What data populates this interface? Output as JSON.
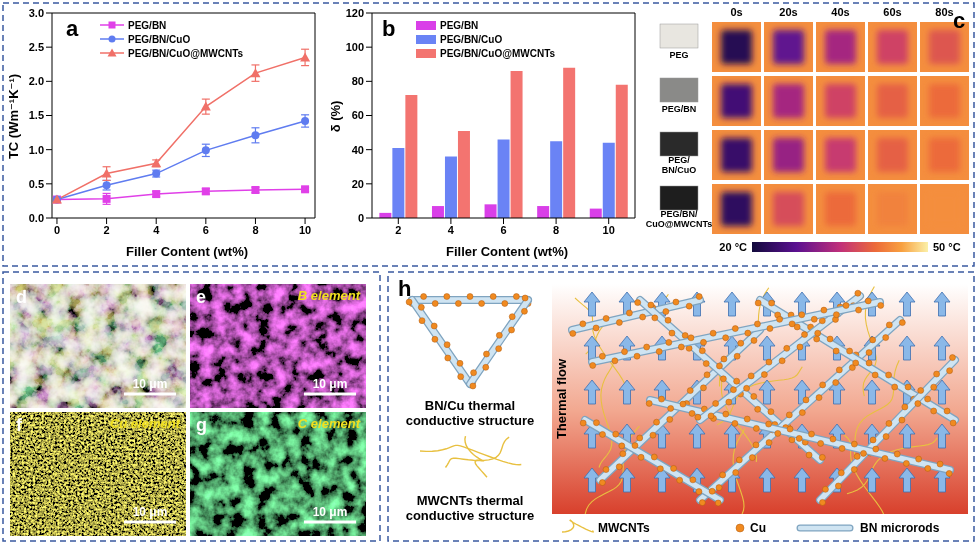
{
  "chart_data": [
    {
      "type": "line",
      "panel": "a",
      "x_label": "Filler Content (wt%)",
      "y_label": "TC (Wm⁻¹K⁻¹)",
      "x": [
        0,
        2,
        4,
        6,
        8,
        10
      ],
      "xlim": [
        -0.2,
        10.4
      ],
      "xticks": [
        0,
        2,
        4,
        6,
        8,
        10
      ],
      "ylim": [
        0,
        3
      ],
      "yticks": [
        {
          "value": 0,
          "label": "0.0"
        },
        {
          "value": 0.5,
          "label": "0.5"
        },
        {
          "value": 1,
          "label": "1.0"
        },
        {
          "value": 1.5,
          "label": "1.5"
        },
        {
          "value": 2,
          "label": "2.0"
        },
        {
          "value": 2.5,
          "label": "2.5"
        },
        {
          "value": 3,
          "label": "3.0"
        }
      ],
      "legend": "upper left",
      "series": [
        {
          "name": "PEG/BN",
          "color": "#e040e8",
          "marker": "square",
          "values": [
            0.27,
            0.28,
            0.35,
            0.39,
            0.41,
            0.42
          ],
          "errors": [
            0.02,
            0.08,
            0.04,
            0.04,
            0.04,
            0.03
          ]
        },
        {
          "name": "PEG/BN/CuO",
          "color": "#5f7cf0",
          "marker": "circle",
          "values": [
            0.27,
            0.48,
            0.65,
            0.99,
            1.21,
            1.42
          ],
          "errors": [
            0.02,
            0.07,
            0.05,
            0.09,
            0.11,
            0.09
          ]
        },
        {
          "name": "PEG/BN/CuO@MWCNTs",
          "color": "#f07068",
          "marker": "triangle",
          "values": [
            0.27,
            0.65,
            0.8,
            1.63,
            2.12,
            2.35
          ],
          "errors": [
            0.02,
            0.1,
            0.05,
            0.11,
            0.12,
            0.12
          ]
        }
      ]
    },
    {
      "type": "bar",
      "panel": "b",
      "x_label": "Filler Content (wt%)",
      "y_label": "δ (%)",
      "categories": [
        "2",
        "4",
        "6",
        "8",
        "10"
      ],
      "ylim": [
        0,
        120
      ],
      "yticks": [
        0,
        20,
        40,
        60,
        80,
        100,
        120
      ],
      "legend": "upper left",
      "series": [
        {
          "name": "PEG/BN",
          "color": "#d93fe8",
          "values": [
            3,
            7,
            8,
            7,
            5.5
          ]
        },
        {
          "name": "PEG/BN/CuO",
          "color": "#6a83f5",
          "values": [
            41,
            36,
            46,
            45,
            44
          ]
        },
        {
          "name": "PEG/BN/CuO@MWCNTs",
          "color": "#f37470",
          "values": [
            72,
            51,
            86,
            88,
            78
          ]
        }
      ]
    }
  ],
  "thermal_images": {
    "panel": "c",
    "columns": [
      "0s",
      "20s",
      "40s",
      "60s",
      "80s"
    ],
    "background_temperature": 44,
    "rows": [
      {
        "label": [
          "PEG"
        ],
        "color": "#e8e6e0",
        "temperatures": [
          22,
          28,
          33,
          37,
          39
        ]
      },
      {
        "label": [
          "PEG/BN"
        ],
        "color": "#8a8a88",
        "temperatures": [
          25,
          33,
          37,
          40,
          41
        ]
      },
      {
        "label": [
          "PEG/",
          "BN/CuO"
        ],
        "color": "#2a2a2a",
        "temperatures": [
          24,
          32,
          36,
          40,
          41
        ]
      },
      {
        "label": [
          "PEG/BN/",
          "CuO@MWCNTs"
        ],
        "color": "#1e1e1e",
        "temperatures": [
          23,
          38,
          41,
          43,
          44
        ]
      }
    ],
    "colorbar": {
      "range": [
        20,
        50
      ],
      "ticks": [
        {
          "value": 20,
          "label": "20 °C"
        },
        {
          "value": 50,
          "label": "50 °C"
        }
      ]
    }
  },
  "eds_maps": {
    "scale_bar": "10 μm",
    "panels": [
      {
        "panel": "d",
        "colors": [
          "#c050c0",
          "#30b050",
          "#c8b030"
        ]
      },
      {
        "panel": "e",
        "label": "B element",
        "color": "#c828c8"
      },
      {
        "panel": "f",
        "label": "Cu element",
        "color": "#d8c820"
      },
      {
        "panel": "g",
        "label": "C element",
        "color": "#28b848"
      }
    ]
  },
  "schematic": {
    "panel": "h",
    "structures": [
      {
        "label": [
          "BN/Cu thermal",
          "conductive structure"
        ]
      },
      {
        "label": [
          "MWCNTs thermal",
          "conductive structure"
        ]
      }
    ],
    "flow_label": "Thermal flow",
    "legend_items": [
      "MWCNTs",
      "Cu",
      "BN microrods"
    ]
  }
}
